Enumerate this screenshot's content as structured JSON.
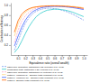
{
  "chart_data": {
    "type": "line",
    "xlabel": "Equivalence ratio (overall wealth)",
    "ylabel": "Combustion efficiency",
    "xlim": [
      0.0,
      1.05
    ],
    "ylim": [
      0.0,
      1.05
    ],
    "xticks": [
      0.1,
      0.2,
      0.3,
      0.4,
      0.5,
      0.6,
      0.7,
      0.8,
      0.9,
      {
        "value": 1.0,
        "label": "1.0"
      }
    ],
    "yticks": [
      0.2,
      0.4,
      0.6,
      0.8,
      {
        "value": 1.0,
        "label": "1.0"
      }
    ],
    "grid": false,
    "legend": "bottom",
    "x": [
      0.05,
      0.1,
      0.15,
      0.2,
      0.25,
      0.3,
      0.35,
      0.4,
      0.45,
      0.5,
      0.55,
      0.6,
      0.65,
      0.7,
      0.75,
      0.8,
      0.85,
      0.9,
      0.95,
      1.0
    ],
    "series": [
      {
        "name": "CEFT RPK calculation, distribution 0.25 (Petersen et al. 1992)",
        "color": "#7799ee",
        "line_style": "dashed",
        "values": [
          0.1,
          0.28,
          0.48,
          0.64,
          0.75,
          0.83,
          0.88,
          0.91,
          0.93,
          0.94,
          0.94,
          0.93,
          0.92,
          0.9,
          0.88,
          0.85,
          0.82,
          0.78,
          0.74,
          0.7
        ]
      },
      {
        "name": "Combustion tests, distribution 0.25 (Hedvard et al. 1992)",
        "color": "#33cccc",
        "line_style": "solid",
        "values": [
          0.05,
          0.14,
          0.28,
          0.43,
          0.57,
          0.68,
          0.77,
          0.83,
          0.87,
          0.9,
          0.91,
          0.92,
          0.92,
          0.91,
          0.9,
          0.88,
          0.86,
          0.83,
          0.8,
          0.77
        ]
      },
      {
        "name": "CEFT RPK calculation, distribution 0.5 (Petersen et al. 1992)",
        "color": "#ffaacc",
        "line_style": "dashed",
        "values": [
          0.25,
          0.5,
          0.68,
          0.79,
          0.86,
          0.91,
          0.94,
          0.96,
          0.975,
          0.982,
          0.985,
          0.985,
          0.984,
          0.981,
          0.977,
          0.971,
          0.963,
          0.953,
          0.941,
          0.927
        ]
      },
      {
        "name": "Match d - residence 5\" - Bourque tests (Marquart et al. 1992)",
        "color": "#ffaa00",
        "line_style": "dotted",
        "values": [
          0.38,
          0.62,
          0.77,
          0.86,
          0.91,
          0.94,
          0.965,
          0.978,
          0.985,
          0.989,
          0.991,
          0.992,
          0.991,
          0.989,
          0.986,
          0.982,
          0.976,
          0.969,
          0.96,
          0.948
        ]
      },
      {
        "name": "Match d - residence 10\" - Bourque tests (Marquart et al. 1992)",
        "color": "#4466ff",
        "line_style": "solid",
        "values": [
          0.18,
          0.38,
          0.56,
          0.7,
          0.8,
          0.87,
          0.91,
          0.94,
          0.958,
          0.968,
          0.974,
          0.976,
          0.975,
          0.972,
          0.967,
          0.96,
          0.951,
          0.94,
          0.927,
          0.912
        ]
      },
      {
        "name": "Match d - Bourque tests (Marquart et al. 1992)",
        "color": "#ff6600",
        "line_style": "solid",
        "values": [
          0.46,
          0.69,
          0.82,
          0.89,
          0.93,
          0.955,
          0.967,
          0.975,
          0.98,
          0.983,
          0.985,
          0.985,
          0.984,
          0.981,
          0.978,
          0.973,
          0.966,
          0.958,
          0.948,
          0.936
        ]
      }
    ]
  }
}
